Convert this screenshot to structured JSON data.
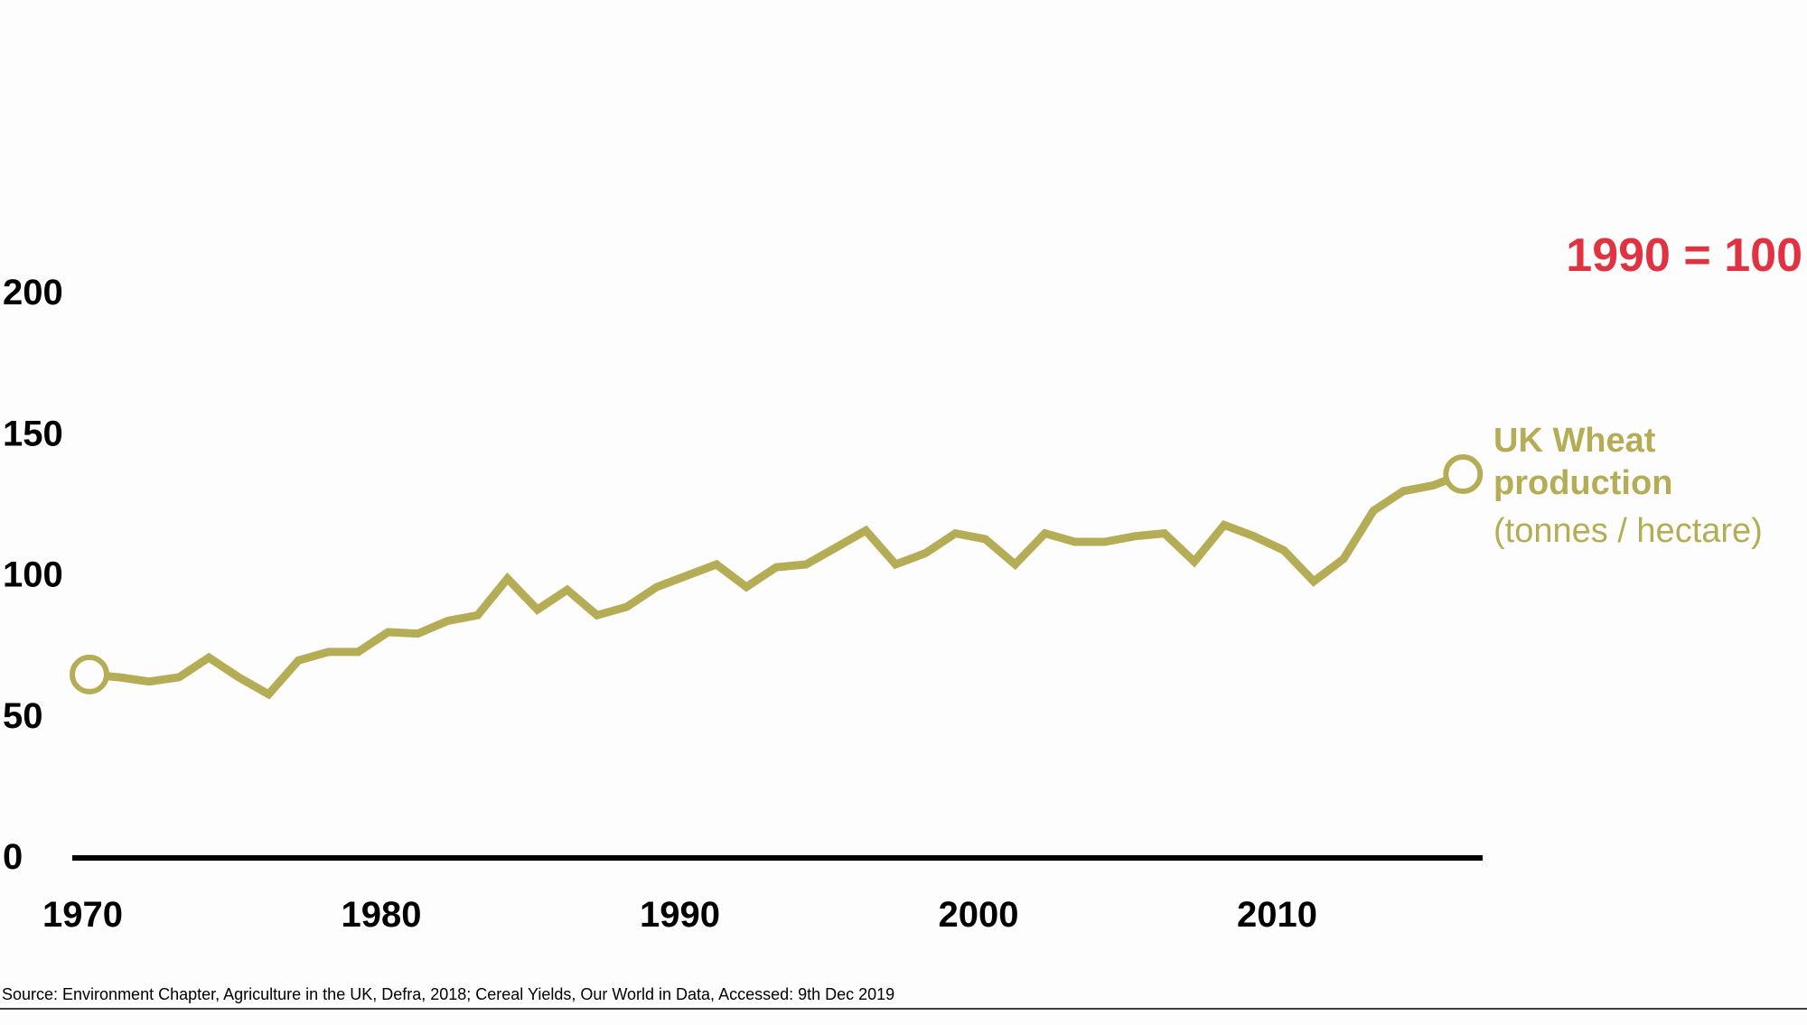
{
  "chart_data": {
    "type": "line",
    "title": "",
    "index_note": "1990 = 100",
    "xlabel": "",
    "ylabel": "",
    "xlim": [
      1970,
      2017
    ],
    "ylim": [
      0,
      200
    ],
    "y_ticks": [
      "0",
      "50",
      "100",
      "150",
      "200"
    ],
    "x_ticks": [
      "1970",
      "1980",
      "1990",
      "2000",
      "2010"
    ],
    "grid": false,
    "series": [
      {
        "label_lines": [
          "UK Wheat",
          "production",
          "(tonnes / hectare)"
        ],
        "x": [
          1970,
          1971,
          1972,
          1973,
          1974,
          1975,
          1976,
          1977,
          1978,
          1979,
          1980,
          1981,
          1982,
          1983,
          1984,
          1985,
          1986,
          1987,
          1988,
          1989,
          1990,
          1991,
          1992,
          1993,
          1994,
          1995,
          1996,
          1997,
          1998,
          1999,
          2000,
          2001,
          2002,
          2003,
          2004,
          2005,
          2006,
          2007,
          2008,
          2009,
          2010,
          2011,
          2012,
          2013,
          2014,
          2015,
          2016
        ],
        "values": [
          65,
          64,
          62.5,
          64,
          71,
          64,
          58,
          70,
          73,
          73,
          80,
          79.5,
          84,
          86,
          99,
          88,
          95,
          86,
          89,
          96,
          100,
          104,
          96,
          103,
          104,
          110,
          116,
          104,
          108,
          115,
          113,
          104,
          115,
          112,
          112,
          114,
          115,
          105,
          118,
          114,
          109,
          98,
          106,
          123,
          130,
          132,
          136
        ],
        "markers": [
          "start",
          "end"
        ]
      }
    ],
    "colors": {
      "series": "#b5ad55",
      "index_note": "#e03241",
      "axis": "#000000"
    },
    "source": "Source: Environment Chapter, Agriculture in the UK, Defra, 2018; Cereal Yields, Our World in Data, Accessed: 9th Dec 2019"
  }
}
